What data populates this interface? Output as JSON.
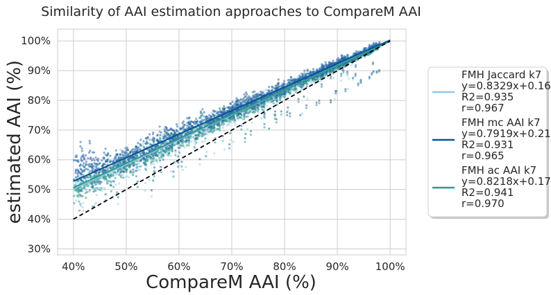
{
  "chart_data": {
    "type": "scatter",
    "title": "Similarity of AAI estimation approaches to CompareM AAI",
    "xlabel": "CompareM AAI (%)",
    "ylabel": "estimated AAI (%)",
    "xlim": [
      37,
      103
    ],
    "ylim": [
      28,
      104
    ],
    "xticks": [
      40,
      50,
      60,
      70,
      80,
      90,
      100
    ],
    "xtick_labels": [
      "40%",
      "50%",
      "60%",
      "70%",
      "80%",
      "90%",
      "100%"
    ],
    "yticks": [
      30,
      40,
      50,
      60,
      70,
      80,
      90,
      100
    ],
    "ytick_labels": [
      "30%",
      "40%",
      "50%",
      "60%",
      "70%",
      "80%",
      "90%",
      "100%"
    ],
    "grid": true,
    "legend_position": "right",
    "reference_line": {
      "type": "y=x",
      "style": "dashed",
      "color": "#000000",
      "x": [
        40,
        100
      ],
      "y": [
        40,
        100
      ]
    },
    "series": [
      {
        "name": "FMH Jaccard k7",
        "color": "#8ec7e8",
        "point_color": "#9ccfe3",
        "slope": 0.8329,
        "intercept": 0.168,
        "r2": "0.935",
        "r": "0.967",
        "fit_x": [
          40,
          100
        ],
        "fit_y": [
          50.1,
          100.1
        ],
        "legend_lines": [
          "FMH Jaccard k7",
          "y=0.8329x+0.168",
          "R2=0.935",
          "r=0.967"
        ]
      },
      {
        "name": "FMH mc AAI k7",
        "color": "#08519c",
        "point_color": "#2b65a8",
        "slope": 0.7919,
        "intercept": 0.211,
        "r2": "0.931",
        "r": "0.965",
        "fit_x": [
          40,
          100
        ],
        "fit_y": [
          52.8,
          100.3
        ],
        "legend_lines": [
          "FMH mc AAI k7",
          "y=0.7919x+0.211",
          "R2=0.931",
          "r=0.965"
        ]
      },
      {
        "name": "FMH ac AAI k7",
        "color": "#2c9a8b",
        "point_color": "#35998a",
        "slope": 0.8218,
        "intercept": 0.177,
        "r2": "0.941",
        "r": "0.970",
        "fit_x": [
          40,
          100
        ],
        "fit_y": [
          50.6,
          99.9
        ],
        "legend_lines": [
          "FMH ac AAI k7",
          "y=0.8218x+0.177",
          "R2=0.941",
          "r=0.970"
        ]
      }
    ]
  }
}
